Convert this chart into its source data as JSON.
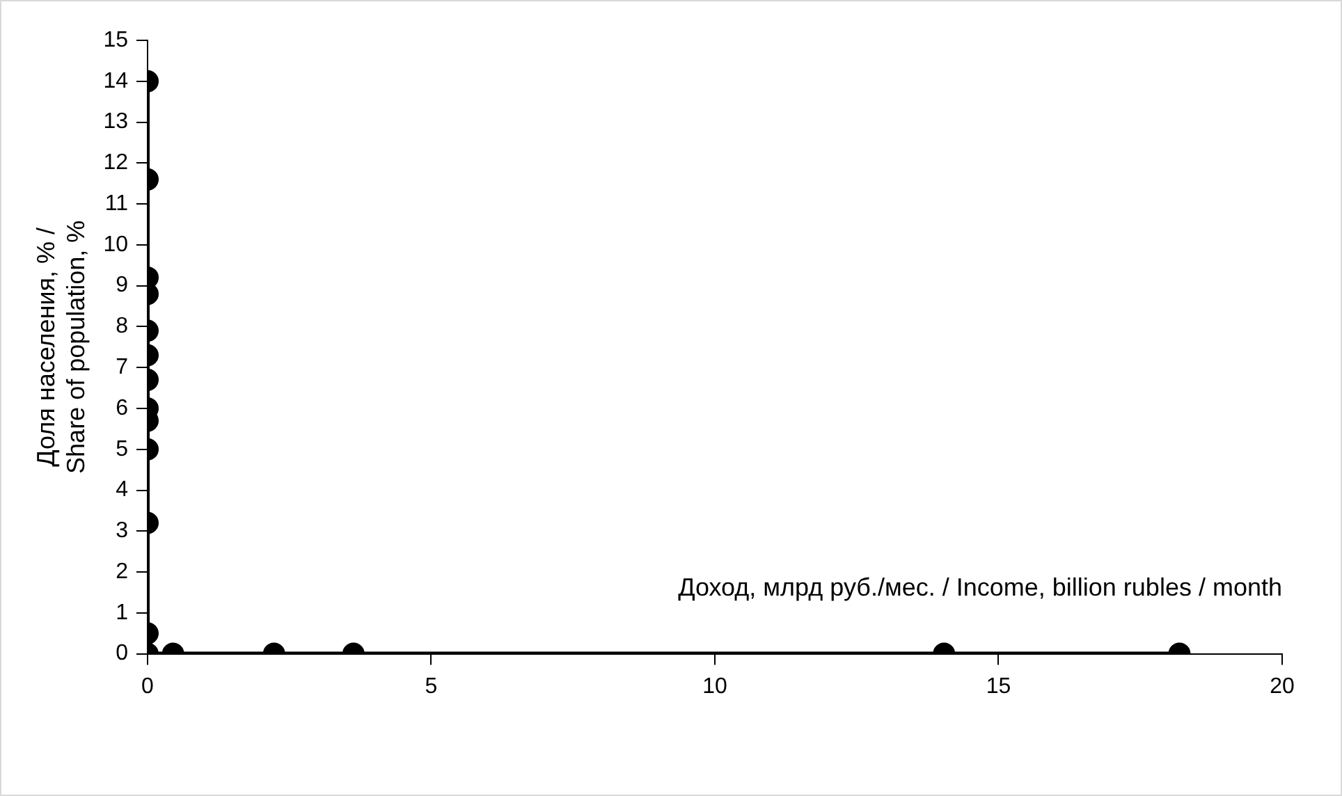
{
  "chart_data": {
    "type": "line",
    "xlabel": "Доход, млрд руб./мес. / Income, billion rubles / month",
    "ylabel": "Доля населения, % / Share of population, %",
    "x": [
      0,
      0,
      0,
      0,
      0,
      0,
      0,
      0,
      0,
      0,
      0,
      0,
      0,
      0.45,
      2.23,
      3.63,
      14.04,
      18.19
    ],
    "series": [
      {
        "color": "#000000",
        "values": [
          14,
          11.6,
          9.2,
          8.8,
          7.9,
          7.3,
          6.7,
          6.0,
          5.7,
          5.0,
          3.2,
          0.5,
          0,
          0,
          0,
          0,
          0,
          0
        ]
      }
    ],
    "xlim": [
      0,
      20
    ],
    "xticks": [
      0,
      5,
      10,
      15,
      20
    ],
    "ylim": [
      0,
      15
    ],
    "yticks": [
      0,
      1,
      2,
      3,
      4,
      5,
      6,
      7,
      8,
      9,
      10,
      11,
      12,
      13,
      14,
      15
    ],
    "grid": false,
    "legend": false,
    "marker": "circle",
    "line_style": "solid"
  }
}
